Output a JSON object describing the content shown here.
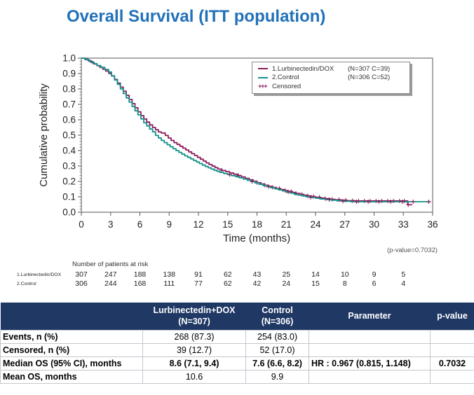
{
  "title": "Overall Survival (ITT population)",
  "colors": {
    "title_blue": "#2171B9",
    "table_header_bg": "#1F3864",
    "axis": "#555555"
  },
  "chart_data": {
    "type": "line",
    "subtype": "kaplan-meier-step",
    "xlabel": "Time (months)",
    "ylabel": "Cumulative probability",
    "xlim": [
      0,
      36
    ],
    "ylim": [
      0.0,
      1.0
    ],
    "xticks": [
      "0",
      "3",
      "6",
      "9",
      "12",
      "15",
      "18",
      "21",
      "24",
      "27",
      "30",
      "33",
      "36"
    ],
    "yticks": [
      "0.0",
      "0.1",
      "0.2",
      "0.3",
      "0.4",
      "0.5",
      "0.6",
      "0.7",
      "0.8",
      "0.9",
      "1.0"
    ],
    "grid": false,
    "legend_position": "top-right",
    "annotation": "(p-value=0.7032)",
    "censored_legend_label": "Censored",
    "censored_symbol": "+++",
    "censor_color": "#8B1C5C",
    "series": [
      {
        "name": "1.Lurbinectedin/DOX",
        "legend_label": "1.Lurbinectedin/DOX",
        "legend_counts": "(N=307 C=39)",
        "color": "#8B1C5C",
        "points": [
          [
            0,
            1.0
          ],
          [
            0.35,
            0.993
          ],
          [
            0.7,
            0.984
          ],
          [
            1.0,
            0.972
          ],
          [
            1.3,
            0.962
          ],
          [
            1.6,
            0.951
          ],
          [
            1.9,
            0.94
          ],
          [
            2.2,
            0.928
          ],
          [
            2.5,
            0.916
          ],
          [
            2.8,
            0.901
          ],
          [
            3.1,
            0.884
          ],
          [
            3.4,
            0.862
          ],
          [
            3.7,
            0.838
          ],
          [
            4.0,
            0.812
          ],
          [
            4.3,
            0.785
          ],
          [
            4.6,
            0.758
          ],
          [
            4.9,
            0.732
          ],
          [
            5.2,
            0.705
          ],
          [
            5.5,
            0.678
          ],
          [
            5.8,
            0.652
          ],
          [
            6.1,
            0.627
          ],
          [
            6.4,
            0.605
          ],
          [
            6.7,
            0.585
          ],
          [
            7.0,
            0.567
          ],
          [
            7.3,
            0.55
          ],
          [
            7.6,
            0.535
          ],
          [
            7.9,
            0.521
          ],
          [
            8.2,
            0.514
          ],
          [
            8.6,
            0.498
          ],
          [
            8.9,
            0.482
          ],
          [
            9.2,
            0.466
          ],
          [
            9.5,
            0.452
          ],
          [
            9.8,
            0.44
          ],
          [
            10.1,
            0.428
          ],
          [
            10.4,
            0.416
          ],
          [
            10.7,
            0.404
          ],
          [
            11.0,
            0.392
          ],
          [
            11.3,
            0.38
          ],
          [
            11.6,
            0.368
          ],
          [
            11.9,
            0.356
          ],
          [
            12.2,
            0.344
          ],
          [
            12.5,
            0.332
          ],
          [
            12.8,
            0.32
          ],
          [
            13.1,
            0.309
          ],
          [
            13.4,
            0.299
          ],
          [
            13.7,
            0.289
          ],
          [
            14.0,
            0.28
          ],
          [
            14.4,
            0.271
          ],
          [
            14.8,
            0.263
          ],
          [
            15.2,
            0.255
          ],
          [
            15.6,
            0.247
          ],
          [
            16.0,
            0.238
          ],
          [
            16.4,
            0.229
          ],
          [
            16.8,
            0.22
          ],
          [
            17.2,
            0.211
          ],
          [
            17.6,
            0.202
          ],
          [
            18.0,
            0.192
          ],
          [
            18.4,
            0.183
          ],
          [
            18.8,
            0.175
          ],
          [
            19.2,
            0.168
          ],
          [
            19.6,
            0.161
          ],
          [
            20.0,
            0.154
          ],
          [
            20.4,
            0.147
          ],
          [
            20.8,
            0.141
          ],
          [
            21.2,
            0.135
          ],
          [
            21.6,
            0.128
          ],
          [
            22.0,
            0.122
          ],
          [
            22.4,
            0.116
          ],
          [
            22.8,
            0.111
          ],
          [
            23.2,
            0.106
          ],
          [
            23.6,
            0.102
          ],
          [
            24.0,
            0.097
          ],
          [
            24.5,
            0.092
          ],
          [
            25.0,
            0.088
          ],
          [
            25.5,
            0.084
          ],
          [
            26.0,
            0.081
          ],
          [
            26.6,
            0.078
          ],
          [
            27.2,
            0.075
          ],
          [
            28.0,
            0.073
          ],
          [
            33.3,
            0.073
          ],
          [
            33.45,
            0.048
          ],
          [
            33.9,
            0.048
          ]
        ],
        "censor_x": [
          14.4,
          16.1,
          18.0,
          18.8,
          19.6,
          20.3,
          20.9,
          21.5,
          22.0,
          22.6,
          23.2,
          23.8,
          24.4,
          25.0,
          25.7,
          26.4,
          27.1,
          27.8,
          28.4,
          29.0,
          29.6,
          30.2,
          30.8,
          31.4,
          32.0,
          32.6,
          33.1,
          33.5
        ]
      },
      {
        "name": "2.Control",
        "legend_label": "2.Control",
        "legend_counts": "(N=306 C=52)",
        "color": "#13918A",
        "points": [
          [
            0,
            1.0
          ],
          [
            0.4,
            0.99
          ],
          [
            0.8,
            0.978
          ],
          [
            1.2,
            0.964
          ],
          [
            1.6,
            0.952
          ],
          [
            2.0,
            0.94
          ],
          [
            2.4,
            0.926
          ],
          [
            2.8,
            0.91
          ],
          [
            3.1,
            0.886
          ],
          [
            3.4,
            0.858
          ],
          [
            3.7,
            0.83
          ],
          [
            4.0,
            0.8
          ],
          [
            4.3,
            0.77
          ],
          [
            4.6,
            0.742
          ],
          [
            4.9,
            0.714
          ],
          [
            5.2,
            0.686
          ],
          [
            5.5,
            0.658
          ],
          [
            5.8,
            0.632
          ],
          [
            6.1,
            0.606
          ],
          [
            6.4,
            0.58
          ],
          [
            6.7,
            0.56
          ],
          [
            7.0,
            0.54
          ],
          [
            7.3,
            0.522
          ],
          [
            7.6,
            0.498
          ],
          [
            7.9,
            0.482
          ],
          [
            8.2,
            0.466
          ],
          [
            8.5,
            0.452
          ],
          [
            8.8,
            0.438
          ],
          [
            9.1,
            0.425
          ],
          [
            9.4,
            0.412
          ],
          [
            9.7,
            0.4
          ],
          [
            10.0,
            0.388
          ],
          [
            10.3,
            0.377
          ],
          [
            10.6,
            0.366
          ],
          [
            10.9,
            0.356
          ],
          [
            11.2,
            0.346
          ],
          [
            11.5,
            0.336
          ],
          [
            11.8,
            0.326
          ],
          [
            12.1,
            0.316
          ],
          [
            12.4,
            0.306
          ],
          [
            12.7,
            0.297
          ],
          [
            13.0,
            0.288
          ],
          [
            13.3,
            0.28
          ],
          [
            13.6,
            0.272
          ],
          [
            13.9,
            0.265
          ],
          [
            14.2,
            0.258
          ],
          [
            14.6,
            0.251
          ],
          [
            15.0,
            0.244
          ],
          [
            15.4,
            0.237
          ],
          [
            15.8,
            0.23
          ],
          [
            16.2,
            0.223
          ],
          [
            16.6,
            0.215
          ],
          [
            17.0,
            0.207
          ],
          [
            17.4,
            0.199
          ],
          [
            17.8,
            0.19
          ],
          [
            18.2,
            0.181
          ],
          [
            18.6,
            0.173
          ],
          [
            19.0,
            0.166
          ],
          [
            19.4,
            0.159
          ],
          [
            19.8,
            0.152
          ],
          [
            20.2,
            0.145
          ],
          [
            20.6,
            0.138
          ],
          [
            21.0,
            0.131
          ],
          [
            21.4,
            0.124
          ],
          [
            21.8,
            0.117
          ],
          [
            22.2,
            0.111
          ],
          [
            22.6,
            0.106
          ],
          [
            23.0,
            0.101
          ],
          [
            23.5,
            0.096
          ],
          [
            24.0,
            0.091
          ],
          [
            24.5,
            0.086
          ],
          [
            25.0,
            0.082
          ],
          [
            25.6,
            0.078
          ],
          [
            26.2,
            0.074
          ],
          [
            26.8,
            0.071
          ],
          [
            27.6,
            0.068
          ],
          [
            35.8,
            0.068
          ]
        ],
        "censor_x": [
          15.2,
          17.5,
          19.2,
          21.2,
          23.5,
          25.4,
          26.8,
          28.2,
          29.4,
          30.5,
          31.7,
          32.9,
          34.0,
          35.6
        ]
      }
    ]
  },
  "at_risk": {
    "title": "Number of patients at risk",
    "months": [
      0,
      3,
      6,
      9,
      12,
      15,
      18,
      21,
      24,
      27,
      30,
      33
    ],
    "rows": [
      {
        "label": "1.Lurbinectedin/DOX",
        "values": [
          "307",
          "247",
          "188",
          "138",
          "91",
          "62",
          "43",
          "25",
          "14",
          "10",
          "9",
          "5"
        ]
      },
      {
        "label": "2.Control",
        "values": [
          "306",
          "244",
          "168",
          "111",
          "77",
          "62",
          "42",
          "24",
          "15",
          "8",
          "6",
          "4"
        ]
      }
    ]
  },
  "table": {
    "header": [
      {
        "line1": "",
        "line2": ""
      },
      {
        "line1": "Lurbinectedin+DOX",
        "line2": "(N=307)"
      },
      {
        "line1": "Control",
        "line2": "(N=306)"
      },
      {
        "line1": "Parameter",
        "line2": ""
      },
      {
        "line1": "p-value",
        "line2": ""
      }
    ],
    "rows": [
      {
        "label": "Events, n (%)",
        "values": [
          "268 (87.3)",
          "254 (83.0)",
          "",
          ""
        ],
        "bold": false
      },
      {
        "label": "Censored, n (%)",
        "values": [
          "39 (12.7)",
          "52 (17.0)",
          "",
          ""
        ],
        "bold": false
      },
      {
        "label": "Median OS (95% CI), months",
        "values": [
          "8.6 (7.1, 9.4)",
          "7.6 (6.6, 8.2)",
          "HR : 0.967 (0.815, 1.148)",
          "0.7032"
        ],
        "bold": true
      },
      {
        "label": "Mean OS, months",
        "values": [
          "10.6",
          "9.9",
          "",
          ""
        ],
        "bold": false
      }
    ]
  }
}
